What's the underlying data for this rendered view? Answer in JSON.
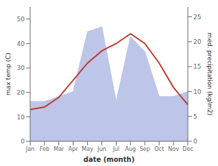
{
  "chart_data": {
    "type": "line",
    "xlabel": "date (month)",
    "ylabel": "max temp (C)",
    "y2label": "med. precipitation (kg/m2)",
    "categories": [
      "Jan",
      "Feb",
      "Mar",
      "Apr",
      "May",
      "Jun",
      "Jul",
      "Aug",
      "Sep",
      "Oct",
      "Nov",
      "Dec"
    ],
    "series": [
      {
        "type": "area",
        "axis": "y2",
        "color": "#bdc5e8",
        "values": [
          8,
          8,
          9,
          10,
          22,
          23,
          8,
          21,
          18,
          9,
          9,
          10
        ]
      },
      {
        "type": "line",
        "color": "#c0392b",
        "values": [
          13,
          14,
          18,
          25,
          32,
          37,
          40,
          44,
          40,
          32,
          22,
          15
        ]
      }
    ],
    "ylim": [
      0,
      55
    ],
    "yticks": [
      0,
      10,
      20,
      30,
      40,
      50
    ],
    "y2lim": [
      0,
      27
    ],
    "y2ticks": [
      0,
      5,
      10,
      15,
      20,
      25
    ]
  }
}
